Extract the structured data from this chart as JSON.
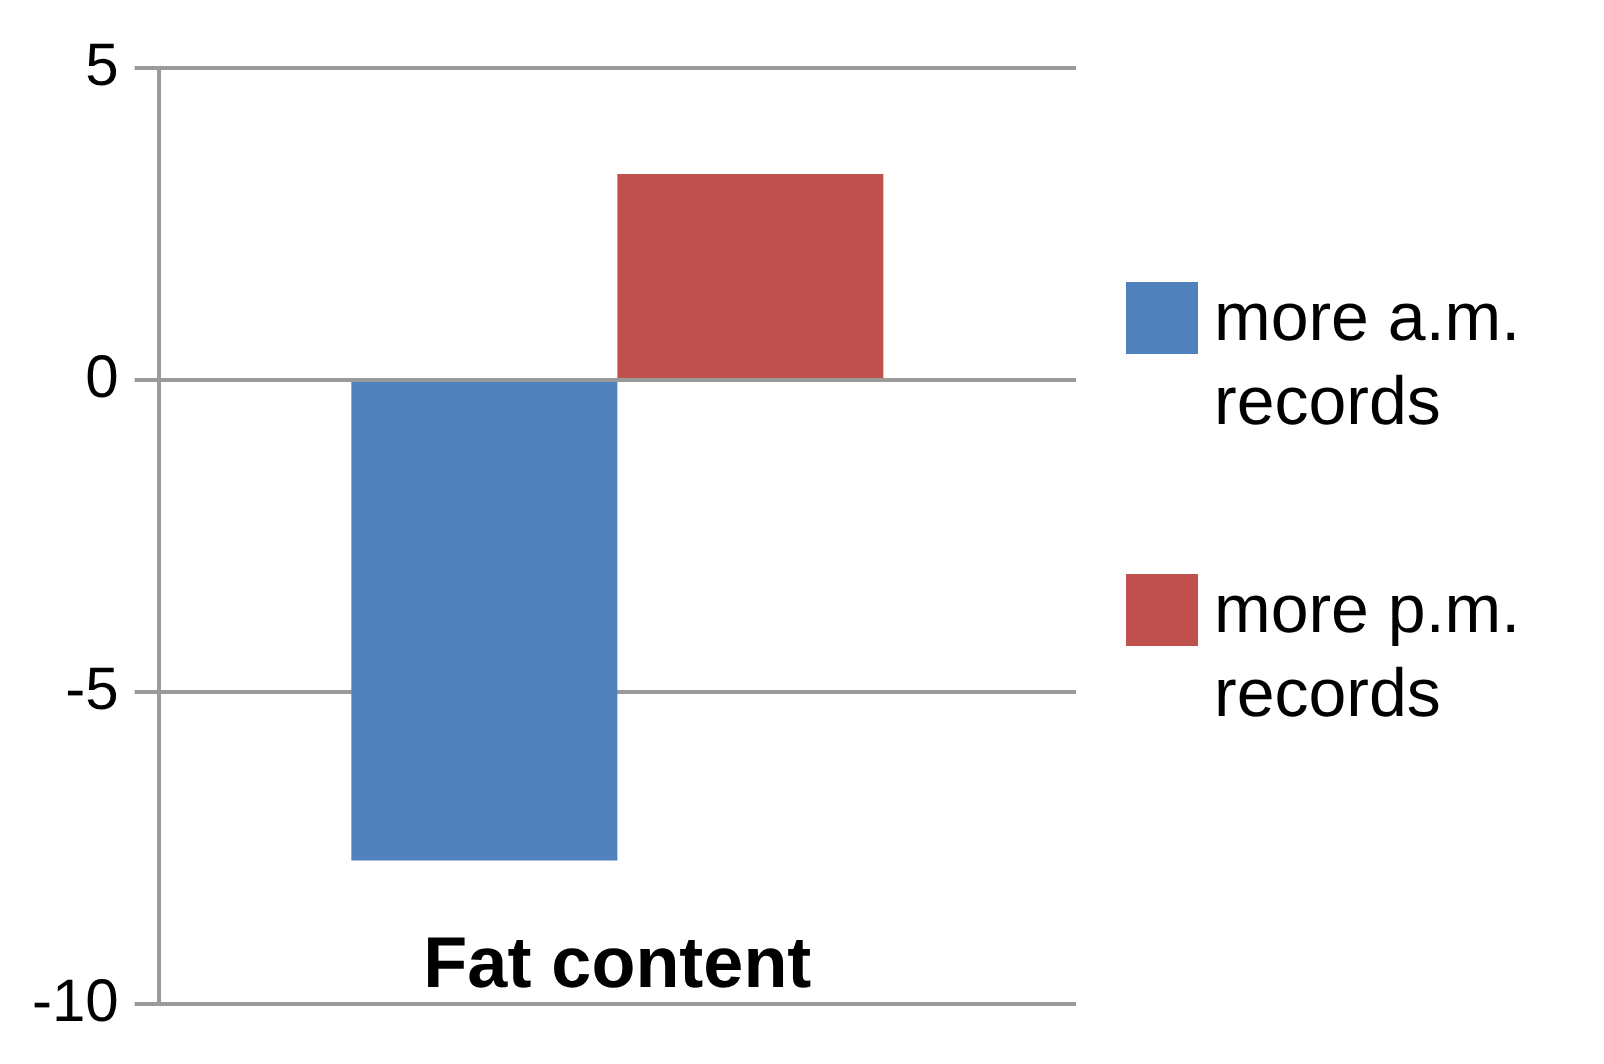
{
  "chart_data": {
    "type": "bar",
    "categories": [
      "Fat content"
    ],
    "series": [
      {
        "name": "more a.m. records",
        "color": "#4f81bd",
        "values": [
          -7.7
        ]
      },
      {
        "name": "more p.m. records",
        "color": "#c0504d",
        "values": [
          3.3
        ]
      }
    ],
    "ylim": [
      -10,
      5
    ],
    "yticks": [
      -10,
      -5,
      0,
      5
    ],
    "grid": "y",
    "legend": "right"
  }
}
